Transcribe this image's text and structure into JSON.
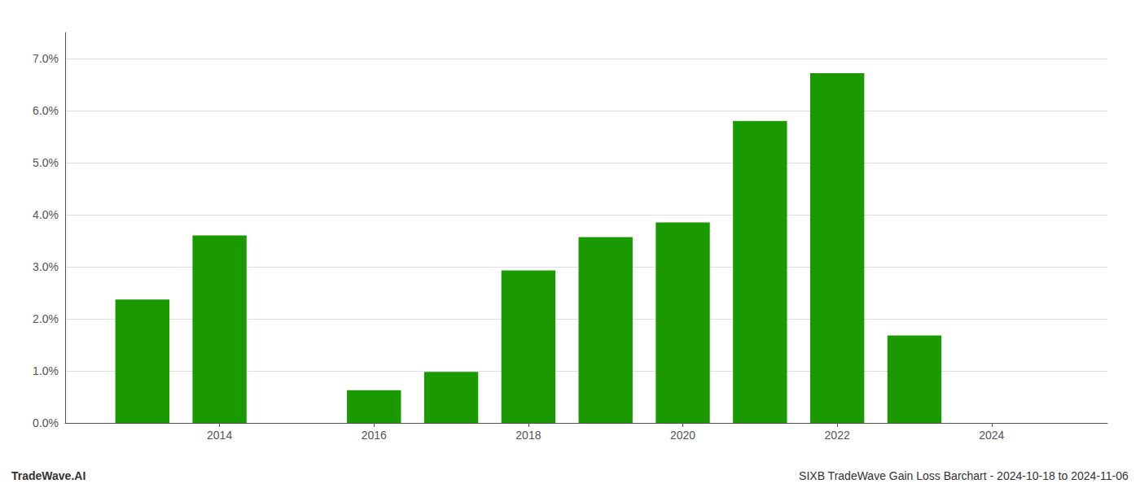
{
  "chart_data": {
    "type": "bar",
    "x": [
      2013,
      2014,
      2016,
      2017,
      2018,
      2019,
      2020,
      2021,
      2022,
      2023
    ],
    "values": [
      0.0237,
      0.036,
      0.0063,
      0.0098,
      0.0293,
      0.0357,
      0.0385,
      0.058,
      0.0672,
      0.0168
    ],
    "color": "#1a9a00",
    "xlim": [
      2012.0,
      2025.5
    ],
    "xticks": [
      2014,
      2016,
      2018,
      2020,
      2022,
      2024
    ],
    "ylim": [
      0,
      0.075
    ],
    "yticks": [
      {
        "value": 0.0,
        "label": "0.0%"
      },
      {
        "value": 0.01,
        "label": "1.0%"
      },
      {
        "value": 0.02,
        "label": "2.0%"
      },
      {
        "value": 0.03,
        "label": "3.0%"
      },
      {
        "value": 0.04,
        "label": "4.0%"
      },
      {
        "value": 0.05,
        "label": "5.0%"
      },
      {
        "value": 0.06,
        "label": "6.0%"
      },
      {
        "value": 0.07,
        "label": "7.0%"
      }
    ],
    "grid": true,
    "annotations": [
      "TradeWave.AI",
      "SIXB TradeWave Gain Loss Barchart - 2024-10-18 to 2024-11-06"
    ]
  }
}
